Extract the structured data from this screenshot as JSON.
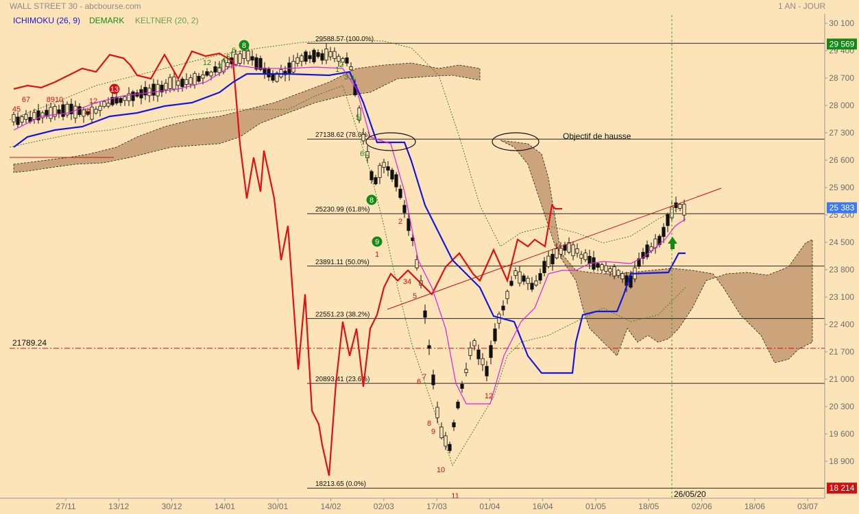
{
  "header": {
    "title": "WALL STREET 30 - abcbourse.com",
    "period": "1 AN - JOUR",
    "indicators": [
      {
        "label": "ICHIMOKU (26, 9)",
        "color": "#1515e0"
      },
      {
        "label": "DEMARK",
        "color": "#138a13"
      },
      {
        "label": "KELTNER (20, 2)",
        "color": "#6e9d4a"
      }
    ]
  },
  "chart_data": {
    "type": "candlestick",
    "x_ticks": [
      "27/11",
      "13/12",
      "30/12",
      "14/01",
      "30/01",
      "14/02",
      "02/03",
      "17/03",
      "01/04",
      "16/04",
      "01/05",
      "18/05",
      "02/06",
      "18/06",
      "03/07"
    ],
    "y_ticks": [
      "30 100",
      "29 400",
      "28 700",
      "28 000",
      "27 300",
      "26 600",
      "25 900",
      "25 200",
      "24 500",
      "23 800",
      "23 100",
      "22 400",
      "21 700",
      "21 000",
      "20 300",
      "19 600",
      "18 900"
    ],
    "ylim": [
      18200,
      30100
    ],
    "fib_levels": [
      {
        "label": "29588.57  (100.0%)",
        "value": 29588.57
      },
      {
        "label": "27138.62  (78.6%)",
        "value": 27138.62
      },
      {
        "label": "25230.99  (61.8%)",
        "value": 25230.99
      },
      {
        "label": "23891.11  (50.0%)",
        "value": 23891.11
      },
      {
        "label": "22551.23  (38.2%)",
        "value": 22551.23
      },
      {
        "label": "20893.41  (23.6%)",
        "value": 20893.41
      },
      {
        "label": "18213.65  (0.0%)",
        "value": 18213.65
      }
    ],
    "price_tags": [
      {
        "label": "29 569",
        "value": 29569,
        "color": "#138a13"
      },
      {
        "label": "25 383",
        "value": 25383,
        "color": "#3c78f0"
      },
      {
        "label": "18 214",
        "value": 18214,
        "color": "#d01010"
      }
    ],
    "support_line": {
      "label": "21789.24",
      "value": 21789.24
    },
    "annotations": {
      "objective": "Objectif de hausse",
      "date_marker": "26/05/20"
    },
    "demark_counts": [
      {
        "text": "45",
        "color": "red"
      },
      {
        "text": "67",
        "color": "red"
      },
      {
        "text": "8910",
        "color": "red"
      },
      {
        "text": "11",
        "color": "red"
      },
      {
        "text": "12",
        "color": "red"
      },
      {
        "text": "13",
        "color": "red",
        "circled": true
      },
      {
        "text": "12",
        "color": "green"
      },
      {
        "text": "3",
        "color": "green"
      },
      {
        "text": "4",
        "color": "green"
      },
      {
        "text": "5",
        "color": "green"
      },
      {
        "text": "6",
        "color": "green"
      },
      {
        "text": "8",
        "color": "green",
        "circled": true
      },
      {
        "text": "1",
        "color": "green"
      },
      {
        "text": "2",
        "color": "green"
      },
      {
        "text": "3",
        "color": "green"
      },
      {
        "text": "4",
        "color": "green"
      },
      {
        "text": "5",
        "color": "green"
      },
      {
        "text": "6",
        "color": "green"
      },
      {
        "text": "7",
        "color": "green"
      },
      {
        "text": "8",
        "color": "green",
        "circled": true
      },
      {
        "text": "9",
        "color": "green",
        "circled": true
      },
      {
        "text": "1",
        "color": "red"
      },
      {
        "text": "2",
        "color": "red"
      },
      {
        "text": "34",
        "color": "red"
      },
      {
        "text": "5",
        "color": "red"
      },
      {
        "text": "6",
        "color": "red"
      },
      {
        "text": "7",
        "color": "red"
      },
      {
        "text": "8",
        "color": "red"
      },
      {
        "text": "9",
        "color": "red"
      },
      {
        "text": "10",
        "color": "red"
      },
      {
        "text": "11",
        "color": "red"
      },
      {
        "text": "12",
        "color": "red"
      }
    ]
  }
}
